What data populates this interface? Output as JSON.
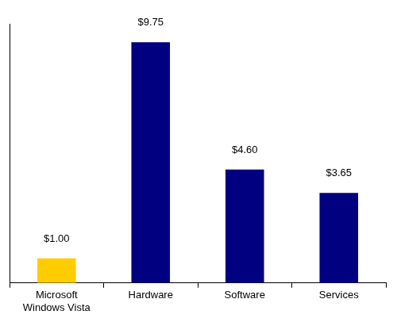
{
  "chart_data": {
    "type": "bar",
    "categories": [
      "Microsoft Windows Vista",
      "Hardware",
      "Software",
      "Services"
    ],
    "values": [
      1.0,
      9.75,
      4.6,
      3.65
    ],
    "value_labels": [
      "$1.00",
      "$9.75",
      "$4.60",
      "$3.65"
    ],
    "colors": [
      "#ffcc00",
      "#000080",
      "#000080",
      "#000080"
    ],
    "ylim": [
      0,
      10.5
    ],
    "yticks": [
      0
    ],
    "grid": false,
    "data_labels": true,
    "tick_labels": "x"
  }
}
